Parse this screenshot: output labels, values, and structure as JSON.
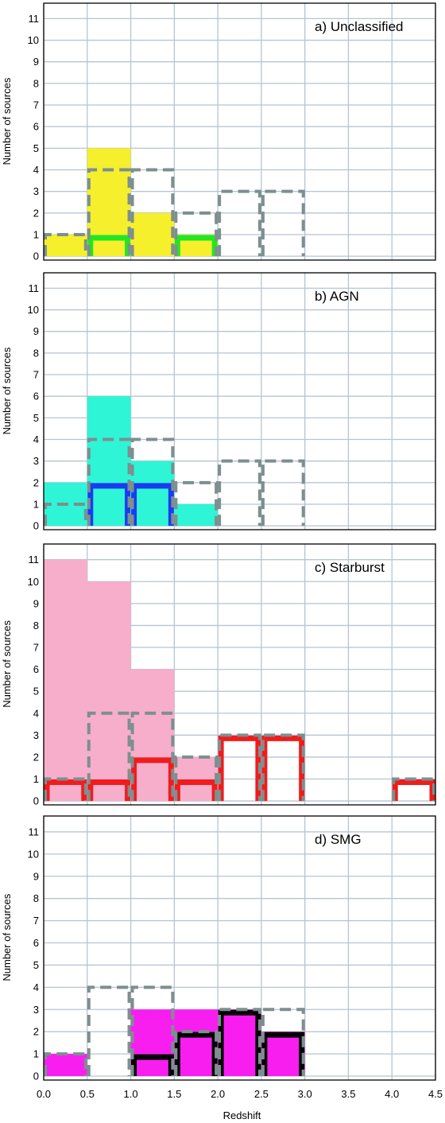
{
  "chart_data": [
    {
      "type": "bar",
      "title": "a) Unclassified",
      "xlabel": "",
      "ylabel": "Number of sources",
      "xlim": [
        0.0,
        4.5
      ],
      "ylim": [
        0,
        11
      ],
      "bin_width": 0.5,
      "grid": true,
      "series": [
        {
          "name": "",
          "style": "filled",
          "color": "#f5ef2c",
          "bins": [
            {
              "x": 0.0,
              "y": 1
            },
            {
              "x": 0.5,
              "y": 5
            },
            {
              "x": 1.0,
              "y": 2
            },
            {
              "x": 1.5,
              "y": 1
            }
          ]
        },
        {
          "name": "",
          "style": "outline",
          "color": "#22e622",
          "bins": [
            {
              "x": 0.5,
              "y": 1
            },
            {
              "x": 1.5,
              "y": 1
            }
          ]
        },
        {
          "name": "",
          "style": "dashed",
          "color": "#7d8f8f",
          "bins": [
            {
              "x": 0.0,
              "y": 1
            },
            {
              "x": 0.5,
              "y": 4
            },
            {
              "x": 1.0,
              "y": 4
            },
            {
              "x": 1.5,
              "y": 2
            },
            {
              "x": 2.0,
              "y": 3
            },
            {
              "x": 2.5,
              "y": 3
            }
          ]
        }
      ]
    },
    {
      "type": "bar",
      "title": "b) AGN",
      "xlabel": "",
      "ylabel": "Number of sources",
      "xlim": [
        0.0,
        4.5
      ],
      "ylim": [
        0,
        11
      ],
      "bin_width": 0.5,
      "grid": true,
      "series": [
        {
          "name": "",
          "style": "filled",
          "color": "#2ef5d6",
          "bins": [
            {
              "x": 0.0,
              "y": 2
            },
            {
              "x": 0.5,
              "y": 6
            },
            {
              "x": 1.0,
              "y": 3
            },
            {
              "x": 1.5,
              "y": 1
            }
          ]
        },
        {
          "name": "",
          "style": "outline",
          "color": "#1a3cf0",
          "bins": [
            {
              "x": 0.5,
              "y": 2
            },
            {
              "x": 1.0,
              "y": 2
            }
          ]
        },
        {
          "name": "",
          "style": "dashed",
          "color": "#7d8f8f",
          "bins": [
            {
              "x": 0.0,
              "y": 1
            },
            {
              "x": 0.5,
              "y": 4
            },
            {
              "x": 1.0,
              "y": 4
            },
            {
              "x": 1.5,
              "y": 2
            },
            {
              "x": 2.0,
              "y": 3
            },
            {
              "x": 2.5,
              "y": 3
            }
          ]
        }
      ]
    },
    {
      "type": "bar",
      "title": "c) Starburst",
      "xlabel": "",
      "ylabel": "Number of sources",
      "xlim": [
        0.0,
        4.5
      ],
      "ylim": [
        0,
        11
      ],
      "bin_width": 0.5,
      "grid": true,
      "series": [
        {
          "name": "",
          "style": "filled",
          "color": "#f7aecb",
          "bins": [
            {
              "x": 0.0,
              "y": 11
            },
            {
              "x": 0.5,
              "y": 10
            },
            {
              "x": 1.0,
              "y": 6
            },
            {
              "x": 1.5,
              "y": 2
            }
          ]
        },
        {
          "name": "",
          "style": "outline",
          "color": "#f01c1c",
          "bins": [
            {
              "x": 0.0,
              "y": 1
            },
            {
              "x": 0.5,
              "y": 1
            },
            {
              "x": 1.0,
              "y": 2
            },
            {
              "x": 1.5,
              "y": 1
            },
            {
              "x": 2.0,
              "y": 3
            },
            {
              "x": 2.5,
              "y": 3
            },
            {
              "x": 4.0,
              "y": 1
            }
          ]
        },
        {
          "name": "",
          "style": "dashed",
          "color": "#7d8f8f",
          "bins": [
            {
              "x": 0.0,
              "y": 1
            },
            {
              "x": 0.5,
              "y": 4
            },
            {
              "x": 1.0,
              "y": 4
            },
            {
              "x": 1.5,
              "y": 2
            },
            {
              "x": 2.0,
              "y": 3
            },
            {
              "x": 2.5,
              "y": 3
            },
            {
              "x": 4.0,
              "y": 1
            }
          ]
        }
      ]
    },
    {
      "type": "bar",
      "title": "d) SMG",
      "xlabel": "Redshift",
      "ylabel": "Number of sources",
      "xlim": [
        0.0,
        4.5
      ],
      "ylim": [
        0,
        11
      ],
      "bin_width": 0.5,
      "grid": true,
      "series": [
        {
          "name": "",
          "style": "filled",
          "color": "#f81ef0",
          "bins": [
            {
              "x": 0.0,
              "y": 1
            },
            {
              "x": 1.0,
              "y": 3
            },
            {
              "x": 1.5,
              "y": 3
            },
            {
              "x": 2.0,
              "y": 3
            },
            {
              "x": 2.5,
              "y": 2
            }
          ]
        },
        {
          "name": "",
          "style": "outline",
          "color": "#000000",
          "bins": [
            {
              "x": 1.0,
              "y": 1
            },
            {
              "x": 1.5,
              "y": 2
            },
            {
              "x": 2.0,
              "y": 3
            },
            {
              "x": 2.5,
              "y": 2
            }
          ]
        },
        {
          "name": "",
          "style": "dashed",
          "color": "#7d8f8f",
          "bins": [
            {
              "x": 0.0,
              "y": 1
            },
            {
              "x": 0.5,
              "y": 4
            },
            {
              "x": 1.0,
              "y": 4
            },
            {
              "x": 1.5,
              "y": 2
            },
            {
              "x": 2.0,
              "y": 3
            },
            {
              "x": 2.5,
              "y": 3
            }
          ]
        }
      ]
    }
  ],
  "axes": {
    "x_ticks": [
      "0.0",
      "0.5",
      "1.0",
      "1.5",
      "2.0",
      "2.5",
      "3.0",
      "3.5",
      "4.0",
      "4.5"
    ],
    "y_ticks": [
      "0",
      "1",
      "2",
      "3",
      "4",
      "5",
      "6",
      "7",
      "8",
      "9",
      "10",
      "11"
    ],
    "grid_color": "#b7c4d2"
  }
}
